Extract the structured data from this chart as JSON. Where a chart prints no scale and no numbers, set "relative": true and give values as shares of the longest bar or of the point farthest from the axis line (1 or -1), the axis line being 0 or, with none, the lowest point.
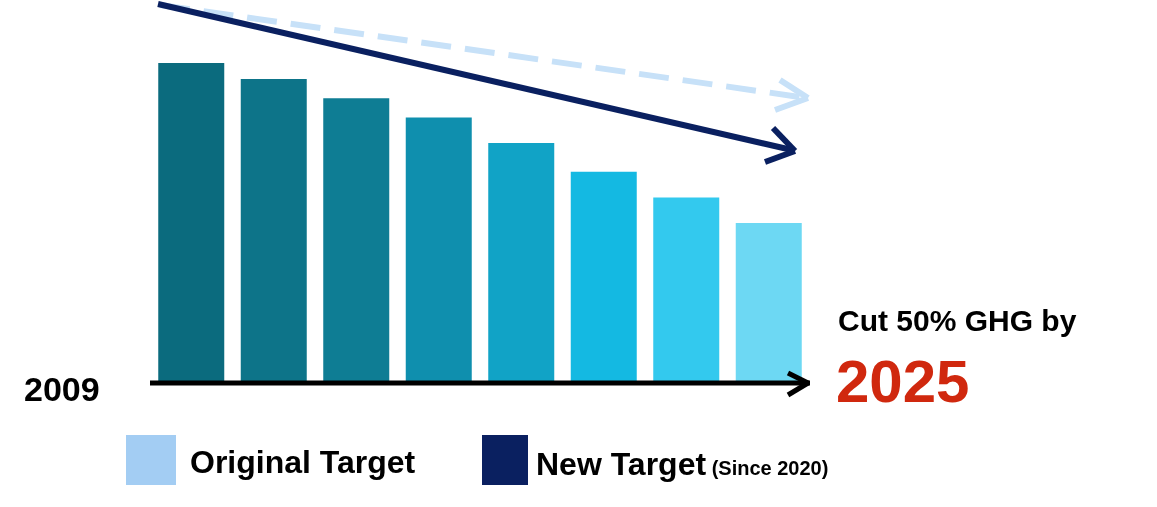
{
  "chart_data": {
    "type": "bar",
    "relative": true,
    "categories": [
      null,
      null,
      null,
      null,
      null,
      null,
      null,
      null
    ],
    "values": [
      1,
      0.95,
      0.89,
      0.83,
      0.75,
      0.66,
      0.58,
      0.5
    ],
    "colors": [
      "#0b6b7e",
      "#0d7489",
      "#0e7d94",
      "#0f8fae",
      "#11a3c6",
      "#14b9e2",
      "#33c9ee",
      "#6dd8f3"
    ],
    "annotations": [
      "2009",
      "Cut 50% GHG by",
      "2025",
      "Original Target",
      "New Target (Since 2020)"
    ]
  }
}
